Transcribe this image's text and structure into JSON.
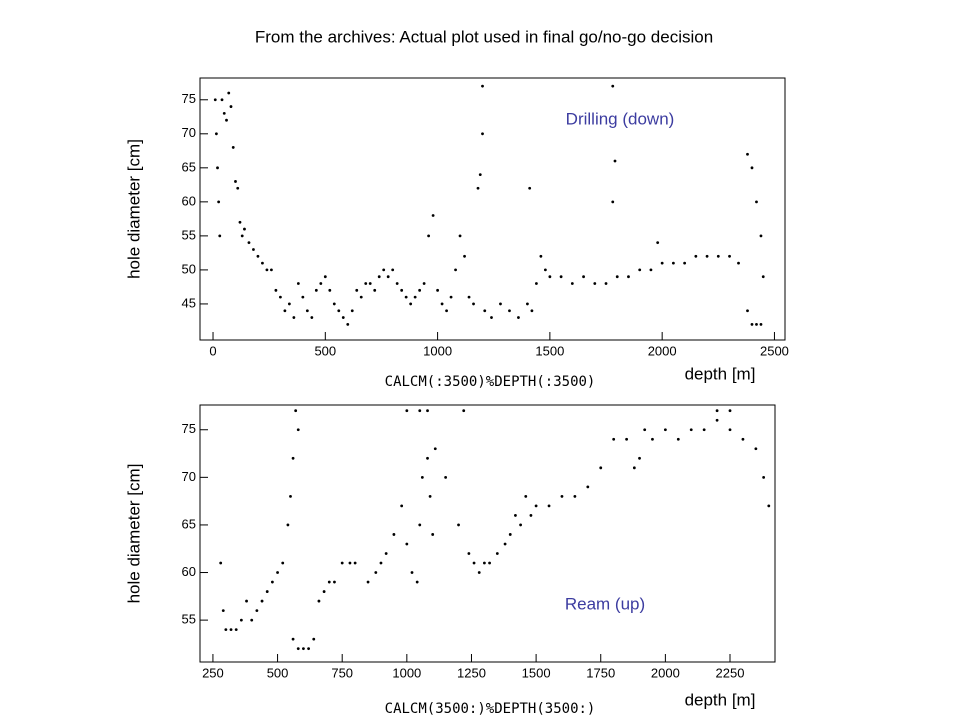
{
  "title": "From the archives: Actual plot used in final go/no-go decision",
  "chart_data": [
    {
      "type": "scatter",
      "xlabel": "depth [m]",
      "ylabel": "hole diameter [cm]",
      "expression": "CALCM(:3500)%DEPTH(:3500)",
      "annotation": "Drilling (down)",
      "annotation_color": "#3c3ca0",
      "color": "#000000",
      "xlim": [
        -58,
        2547
      ],
      "ylim": [
        39.7,
        78.2
      ],
      "xticks": [
        0,
        500,
        1000,
        1500,
        2000,
        2500
      ],
      "yticks": [
        45,
        50,
        55,
        60,
        65,
        70,
        75
      ],
      "x": [
        10,
        15,
        20,
        25,
        30,
        40,
        50,
        60,
        70,
        80,
        90,
        100,
        110,
        120,
        130,
        140,
        160,
        180,
        200,
        220,
        240,
        260,
        280,
        300,
        320,
        340,
        360,
        380,
        400,
        420,
        440,
        460,
        480,
        500,
        520,
        540,
        560,
        580,
        600,
        620,
        640,
        660,
        680,
        700,
        720,
        740,
        760,
        780,
        800,
        820,
        840,
        860,
        880,
        900,
        920,
        940,
        960,
        980,
        1000,
        1020,
        1040,
        1060,
        1080,
        1100,
        1120,
        1140,
        1160,
        1180,
        1190,
        1200,
        1210,
        1240,
        1280,
        1320,
        1360,
        1400,
        1420,
        1440,
        1460,
        1480,
        1500,
        1550,
        1600,
        1650,
        1700,
        1750,
        1780,
        1790,
        1800,
        1850,
        1900,
        1950,
        1980,
        2000,
        2050,
        2100,
        2150,
        2200,
        2250,
        2300,
        2340,
        2380,
        2400,
        2420,
        2440,
        2380,
        2400,
        2420,
        2440,
        2450,
        1410,
        1780,
        1200
      ],
      "values": [
        75,
        70,
        65,
        60,
        55,
        75,
        73,
        72,
        76,
        74,
        68,
        63,
        62,
        57,
        55,
        56,
        54,
        53,
        52,
        51,
        50,
        50,
        47,
        46,
        44,
        45,
        43,
        48,
        46,
        44,
        43,
        47,
        48,
        49,
        47,
        45,
        44,
        43,
        42,
        44,
        47,
        46,
        48,
        48,
        47,
        49,
        50,
        49,
        50,
        48,
        47,
        46,
        45,
        46,
        47,
        48,
        55,
        58,
        47,
        45,
        44,
        46,
        50,
        55,
        52,
        46,
        45,
        62,
        64,
        77,
        44,
        43,
        45,
        44,
        43,
        45,
        44,
        48,
        52,
        50,
        49,
        49,
        48,
        49,
        48,
        48,
        60,
        66,
        49,
        49,
        50,
        50,
        54,
        51,
        51,
        51,
        52,
        52,
        52,
        52,
        51,
        44,
        42,
        42,
        42,
        67,
        65,
        60,
        55,
        49,
        62,
        77,
        70
      ]
    },
    {
      "type": "scatter",
      "xlabel": "depth [m]",
      "ylabel": "hole diameter [cm]",
      "expression": "CALCM(3500:)%DEPTH(3500:)",
      "annotation": "Ream (up)",
      "annotation_color": "#3c3ca0",
      "color": "#000000",
      "xlim": [
        200,
        2424
      ],
      "ylim": [
        50.6,
        77.6
      ],
      "xticks": [
        250,
        500,
        750,
        1000,
        1250,
        1500,
        1750,
        2000,
        2250
      ],
      "yticks": [
        55,
        60,
        65,
        70,
        75
      ],
      "x": [
        280,
        290,
        300,
        320,
        340,
        360,
        380,
        400,
        420,
        440,
        460,
        480,
        500,
        520,
        540,
        550,
        560,
        570,
        580,
        560,
        580,
        600,
        620,
        640,
        660,
        680,
        700,
        720,
        750,
        780,
        800,
        850,
        880,
        900,
        920,
        950,
        980,
        1000,
        1020,
        1040,
        1050,
        1060,
        1080,
        1090,
        1100,
        1110,
        1150,
        1200,
        1220,
        1240,
        1260,
        1280,
        1300,
        1320,
        1350,
        1380,
        1400,
        1420,
        1440,
        1460,
        1480,
        1500,
        1550,
        1600,
        1650,
        1700,
        1750,
        1800,
        1850,
        1880,
        1900,
        1920,
        1950,
        2000,
        2050,
        2100,
        2150,
        2200,
        2250,
        2300,
        2350,
        2380,
        2400,
        1000,
        1050,
        1080,
        2200,
        2250
      ],
      "values": [
        61,
        56,
        54,
        54,
        54,
        55,
        57,
        55,
        56,
        57,
        58,
        59,
        60,
        61,
        65,
        68,
        72,
        77,
        75,
        53,
        52,
        52,
        52,
        53,
        57,
        58,
        59,
        59,
        61,
        61,
        61,
        59,
        60,
        61,
        62,
        64,
        67,
        63,
        60,
        59,
        65,
        70,
        72,
        68,
        64,
        73,
        70,
        65,
        77,
        62,
        61,
        60,
        61,
        61,
        62,
        63,
        64,
        66,
        65,
        68,
        66,
        67,
        67,
        68,
        68,
        69,
        71,
        74,
        74,
        71,
        72,
        75,
        74,
        75,
        74,
        75,
        75,
        76,
        75,
        74,
        73,
        70,
        67,
        77,
        77,
        77,
        77,
        77
      ]
    }
  ]
}
